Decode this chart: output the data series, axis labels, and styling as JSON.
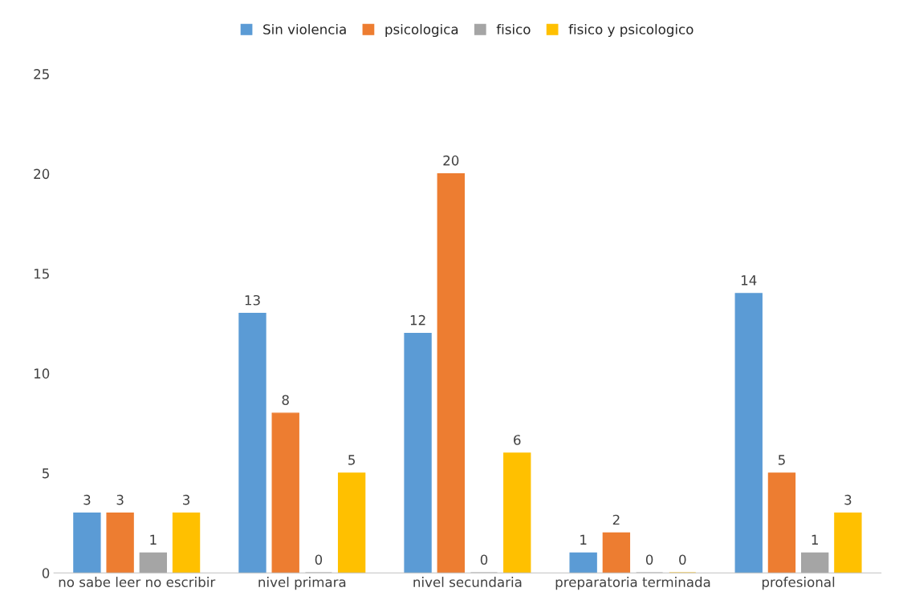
{
  "chart_data": {
    "type": "bar",
    "categories": [
      "no sabe leer no escribir",
      "nivel primara",
      "nivel secundaria",
      "preparatoria terminada",
      "profesional"
    ],
    "series": [
      {
        "name": "Sin violencia",
        "color": "#5b9bd5",
        "values": [
          3,
          13,
          12,
          1,
          14
        ]
      },
      {
        "name": "psicologica",
        "color": "#ed7d31",
        "values": [
          3,
          8,
          20,
          2,
          5
        ]
      },
      {
        "name": "fisico",
        "color": "#a5a5a5",
        "values": [
          1,
          0,
          0,
          0,
          1
        ]
      },
      {
        "name": "fisico y psicologico",
        "color": "#ffc000",
        "values": [
          3,
          5,
          6,
          0,
          3
        ]
      }
    ],
    "ylim": [
      0,
      25
    ],
    "yticks": [
      0,
      5,
      10,
      15,
      20,
      25
    ],
    "grid": false,
    "legend": "top",
    "data_labels": true
  }
}
